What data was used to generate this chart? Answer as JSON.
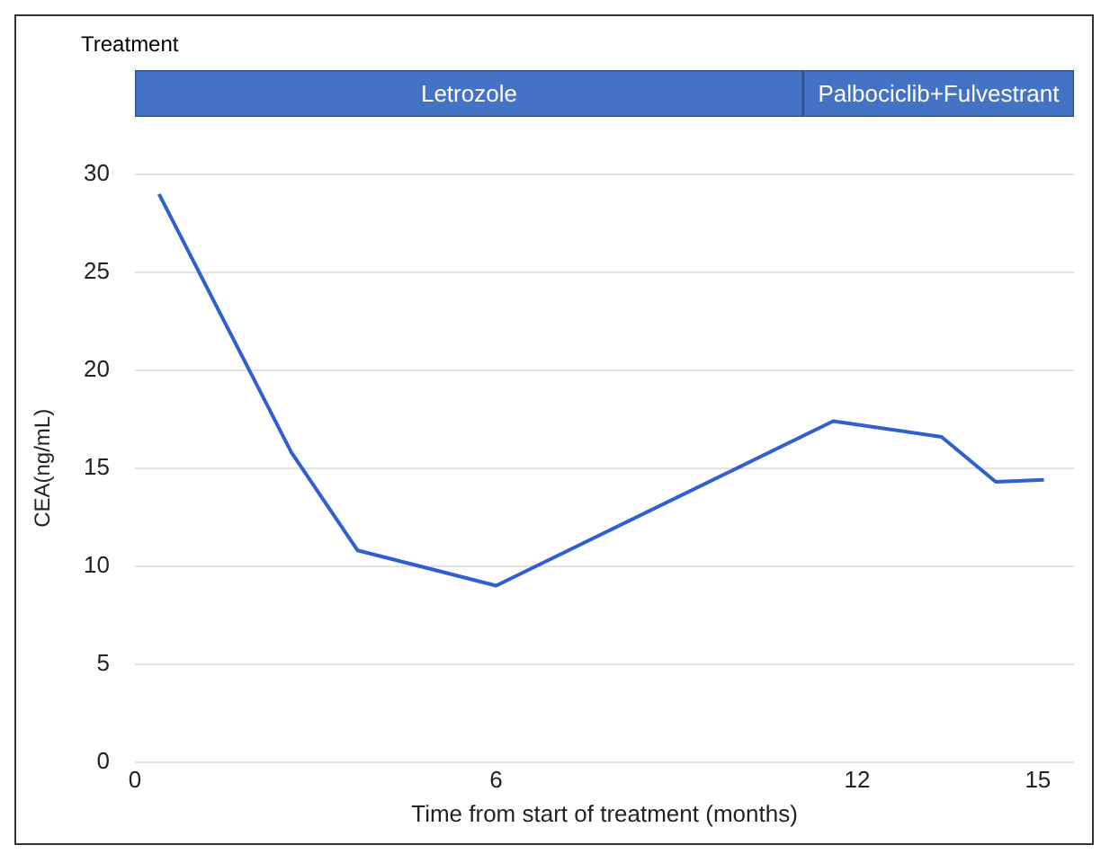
{
  "chart_data": [
    {
      "type": "bar",
      "orientation": "horizontal",
      "stacked": true,
      "title": "Treatment",
      "categories": [
        null
      ],
      "series": [
        {
          "name": "Letrozole",
          "color": "#4472c4",
          "values": [
            11.1
          ]
        },
        {
          "name": "Palbociclib+Fulvestrant",
          "color": "#4472c4",
          "values": [
            4.5
          ]
        }
      ],
      "xlim": [
        0,
        15.6
      ],
      "tick_labels": false
    },
    {
      "type": "line",
      "xlabel": "Time from start of treatment (months)",
      "ylabel": "CEA(ng/mL)",
      "x": [
        0.4,
        2.6,
        3.7,
        6.0,
        11.6,
        13.4,
        14.3,
        15.1
      ],
      "series": [
        {
          "color": "#2f5fd0",
          "values": [
            29,
            15.8,
            10.8,
            9,
            17.4,
            16.6,
            14.3,
            14.4
          ]
        }
      ],
      "xlim": [
        0,
        15.6
      ],
      "xticks": [
        0,
        6,
        12,
        15
      ],
      "ylim": [
        0,
        30
      ],
      "yticks": [
        0,
        5,
        10,
        15,
        20,
        25,
        30
      ],
      "grid": "y",
      "line_style": "solid"
    }
  ]
}
